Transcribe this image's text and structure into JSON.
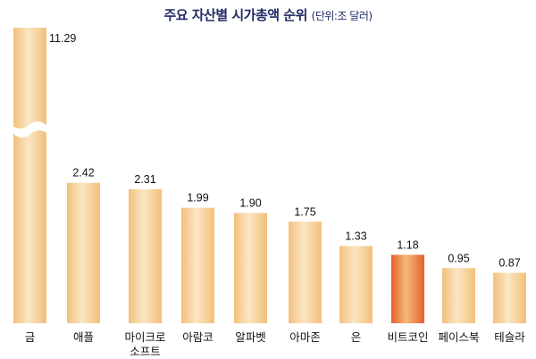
{
  "chart_data": {
    "type": "bar",
    "title": "주요 자산별 시가총액 순위",
    "unit_label": "(단위:조 달러)",
    "categories": [
      "금",
      "애플",
      "마이크로소프트",
      "아람코",
      "알파벳",
      "아마존",
      "은",
      "비트코인",
      "페이스북",
      "테슬라"
    ],
    "category_lines": [
      [
        "금"
      ],
      [
        "애플"
      ],
      [
        "마이크로",
        "소프트"
      ],
      [
        "아람코"
      ],
      [
        "알파벳"
      ],
      [
        "아마존"
      ],
      [
        "은"
      ],
      [
        "비트코인"
      ],
      [
        "페이스북"
      ],
      [
        "테슬라"
      ]
    ],
    "values": [
      11.29,
      2.42,
      2.31,
      1.99,
      1.9,
      1.75,
      1.33,
      1.18,
      0.95,
      0.87
    ],
    "value_labels": [
      "11.29",
      "2.42",
      "2.31",
      "1.99",
      "1.90",
      "1.75",
      "1.33",
      "1.18",
      "0.95",
      "0.87"
    ],
    "axis_break": "금",
    "highlight": "비트코인",
    "grid": false,
    "colors": {
      "bar_light": "#fbe6c4",
      "bar_dark": "#f2c07a",
      "highlight_light": "#f5b87a",
      "highlight_dark": "#e4622a",
      "title": "#222a66"
    }
  }
}
